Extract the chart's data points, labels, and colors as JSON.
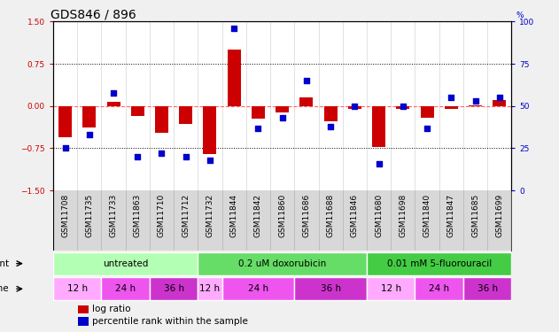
{
  "title": "GDS846 / 896",
  "samples": [
    "GSM11708",
    "GSM11735",
    "GSM11733",
    "GSM11863",
    "GSM11710",
    "GSM11712",
    "GSM11732",
    "GSM11844",
    "GSM11842",
    "GSM11860",
    "GSM11686",
    "GSM11688",
    "GSM11846",
    "GSM11680",
    "GSM11698",
    "GSM11840",
    "GSM11847",
    "GSM11685",
    "GSM11699"
  ],
  "log_ratio": [
    -0.55,
    -0.38,
    0.08,
    -0.18,
    -0.48,
    -0.32,
    -0.85,
    1.0,
    -0.22,
    -0.12,
    0.15,
    -0.27,
    -0.05,
    -0.72,
    -0.05,
    -0.2,
    -0.05,
    0.02,
    0.1
  ],
  "percentile_rank": [
    25,
    33,
    58,
    20,
    22,
    20,
    18,
    96,
    37,
    43,
    65,
    38,
    50,
    16,
    50,
    37,
    55,
    53,
    55
  ],
  "ylim_left": [
    -1.5,
    1.5
  ],
  "ylim_right": [
    0,
    100
  ],
  "yticks_left": [
    -1.5,
    -0.75,
    0,
    0.75,
    1.5
  ],
  "yticks_right": [
    0,
    25,
    50,
    75,
    100
  ],
  "hlines": [
    0.75,
    -0.75
  ],
  "agents": [
    {
      "label": "untreated",
      "color": "#b3ffb3",
      "start": 0,
      "end": 6
    },
    {
      "label": "0.2 uM doxorubicin",
      "color": "#66dd66",
      "start": 6,
      "end": 13
    },
    {
      "label": "0.01 mM 5-fluorouracil",
      "color": "#44cc44",
      "start": 13,
      "end": 19
    }
  ],
  "times": [
    {
      "label": "12 h",
      "color": "#ffaaff",
      "start": 0,
      "end": 2
    },
    {
      "label": "24 h",
      "color": "#ee55ee",
      "start": 2,
      "end": 4
    },
    {
      "label": "36 h",
      "color": "#cc33cc",
      "start": 4,
      "end": 6
    },
    {
      "label": "12 h",
      "color": "#ffaaff",
      "start": 6,
      "end": 7
    },
    {
      "label": "24 h",
      "color": "#ee55ee",
      "start": 7,
      "end": 10
    },
    {
      "label": "36 h",
      "color": "#cc33cc",
      "start": 10,
      "end": 13
    },
    {
      "label": "12 h",
      "color": "#ffaaff",
      "start": 13,
      "end": 15
    },
    {
      "label": "24 h",
      "color": "#ee55ee",
      "start": 15,
      "end": 17
    },
    {
      "label": "36 h",
      "color": "#cc33cc",
      "start": 17,
      "end": 19
    }
  ],
  "bar_color": "#cc0000",
  "dot_color": "#0000cc",
  "zero_line_color": "#ff6666",
  "bg_color": "#f0f0f0",
  "plot_bg": "#ffffff",
  "title_fontsize": 10,
  "tick_fontsize": 6.5,
  "label_fontsize": 7.5,
  "sample_label_fontsize": 6.5
}
